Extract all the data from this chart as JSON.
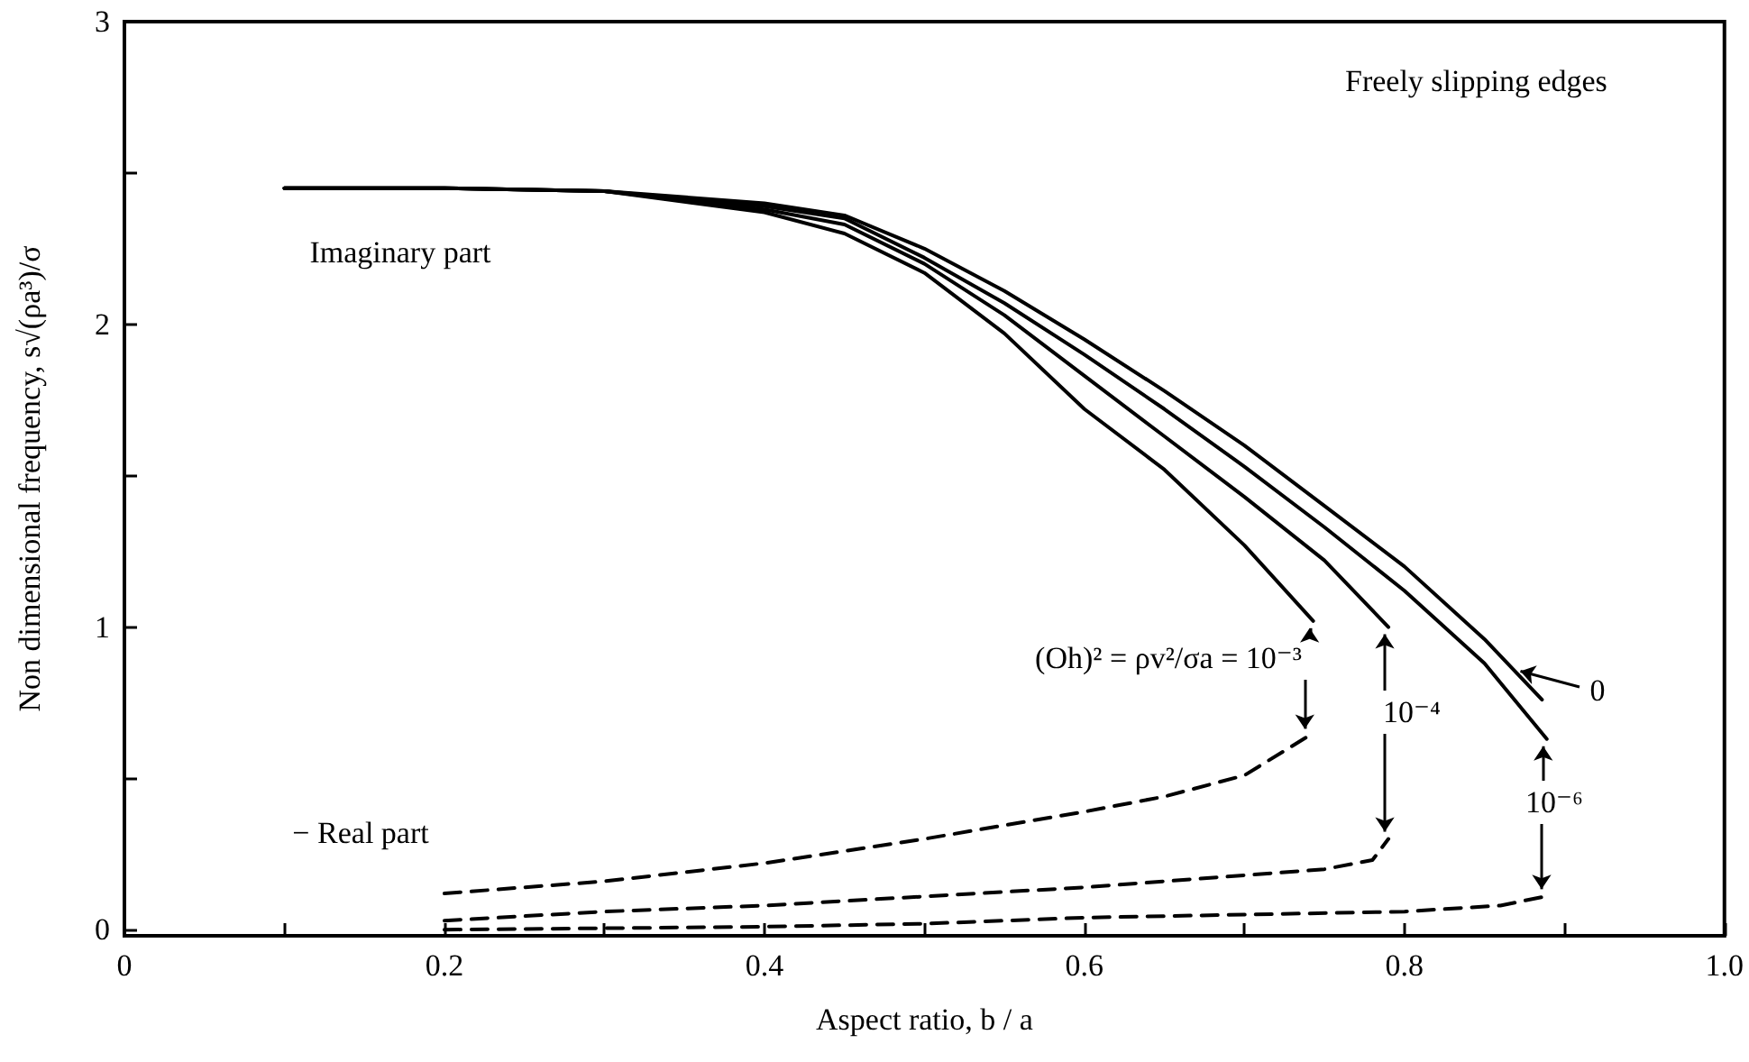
{
  "chart_data": {
    "type": "line",
    "xlabel": "Aspect ratio, b / a",
    "ylabel": "Non dimensional frequency, s√(ρa³)/σ",
    "xlim": [
      0,
      1
    ],
    "ylim": [
      -0.02,
      3
    ],
    "xticks": [
      0,
      {
        "value": 0.1,
        "label": null
      },
      0.2,
      {
        "value": 0.3,
        "label": null
      },
      0.4,
      {
        "value": 0.5,
        "label": null
      },
      0.6,
      {
        "value": 0.7,
        "label": null
      },
      0.8,
      {
        "value": 0.9,
        "label": null
      },
      {
        "value": 1,
        "label": "1.0"
      }
    ],
    "yticks": [
      0,
      {
        "value": 0.5,
        "label": null
      },
      1,
      {
        "value": 1.5,
        "label": null
      },
      2,
      {
        "value": 2.5,
        "label": null
      },
      3
    ],
    "grid": false,
    "marker": "none",
    "series": [
      {
        "color": "#000000",
        "line_style": "solid",
        "x": [
          0.1,
          0.2,
          0.3,
          0.4,
          0.45,
          0.5,
          0.55,
          0.6,
          0.65,
          0.7,
          0.743
        ],
        "values": [
          2.45,
          2.45,
          2.44,
          2.37,
          2.3,
          2.17,
          1.97,
          1.72,
          1.52,
          1.27,
          1.02
        ]
      },
      {
        "color": "#000000",
        "line_style": "solid",
        "x": [
          0.1,
          0.2,
          0.3,
          0.4,
          0.45,
          0.5,
          0.55,
          0.6,
          0.65,
          0.7,
          0.75,
          0.79
        ],
        "values": [
          2.45,
          2.45,
          2.44,
          2.38,
          2.33,
          2.2,
          2.03,
          1.83,
          1.63,
          1.43,
          1.22,
          1.0
        ]
      },
      {
        "color": "#000000",
        "line_style": "solid",
        "x": [
          0.1,
          0.2,
          0.3,
          0.4,
          0.45,
          0.5,
          0.55,
          0.6,
          0.65,
          0.7,
          0.75,
          0.8,
          0.85,
          0.889
        ],
        "values": [
          2.45,
          2.45,
          2.44,
          2.39,
          2.35,
          2.22,
          2.07,
          1.9,
          1.72,
          1.53,
          1.33,
          1.12,
          0.88,
          0.63
        ]
      },
      {
        "color": "#000000",
        "line_style": "solid",
        "x": [
          0.1,
          0.2,
          0.3,
          0.4,
          0.45,
          0.5,
          0.55,
          0.6,
          0.65,
          0.7,
          0.75,
          0.8,
          0.85,
          0.886
        ],
        "values": [
          2.45,
          2.45,
          2.44,
          2.4,
          2.36,
          2.25,
          2.11,
          1.95,
          1.78,
          1.6,
          1.4,
          1.2,
          0.96,
          0.76
        ]
      },
      {
        "color": "#000000",
        "line_style": "dashed",
        "x": [
          0.2,
          0.3,
          0.4,
          0.5,
          0.6,
          0.65,
          0.7,
          0.74
        ],
        "values": [
          0.12,
          0.16,
          0.22,
          0.3,
          0.39,
          0.44,
          0.51,
          0.64
        ]
      },
      {
        "color": "#000000",
        "line_style": "dashed",
        "x": [
          0.2,
          0.3,
          0.4,
          0.5,
          0.6,
          0.7,
          0.75,
          0.78,
          0.79
        ],
        "values": [
          0.03,
          0.06,
          0.08,
          0.11,
          0.14,
          0.18,
          0.2,
          0.23,
          0.3
        ]
      },
      {
        "color": "#000000",
        "line_style": "dashed",
        "x": [
          0.2,
          0.3,
          0.4,
          0.5,
          0.6,
          0.7,
          0.8,
          0.86,
          0.888
        ],
        "values": [
          0.0,
          0.005,
          0.01,
          0.02,
          0.04,
          0.05,
          0.06,
          0.08,
          0.11
        ]
      }
    ],
    "annotations": [
      "Freely slipping edges",
      "Imaginary part",
      "− Real part",
      {
        "text": "(Oh)² = ρv²/σa = 10⁻³",
        "x": 0.743,
        "y": 1.02
      },
      {
        "text": "10⁻⁴",
        "x": 0.79,
        "y": 1.0
      },
      {
        "text": "0",
        "x": 0.868,
        "y": 0.86
      },
      {
        "text": "10⁻⁶",
        "x": 0.889,
        "y": 0.63
      }
    ]
  }
}
